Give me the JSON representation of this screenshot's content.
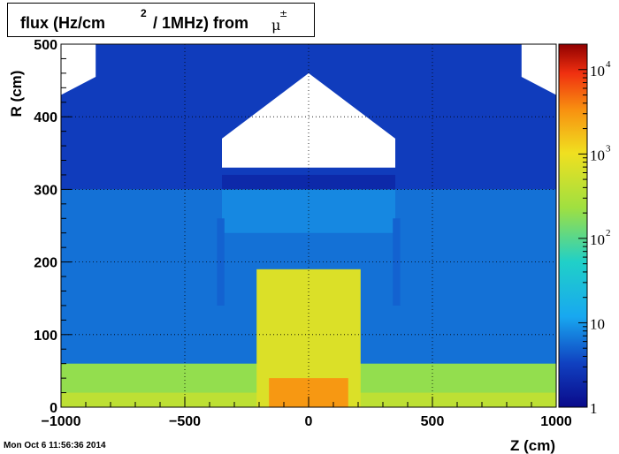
{
  "title": {
    "main": "flux (Hz/cm",
    "sup": "2",
    "rest": "/ 1MHz) from",
    "particle": "μ",
    "particle_sup": "±"
  },
  "timestamp": "Mon Oct  6 11:56:36 2014",
  "chart_data": {
    "type": "heatmap",
    "title": "flux (Hz/cm2 / 1MHz) from μ±",
    "xlabel": "Z (cm)",
    "ylabel": "R (cm)",
    "xlim": [
      -1000,
      1000
    ],
    "ylim": [
      0,
      500
    ],
    "zscale": "log",
    "zlim": [
      1,
      20000
    ],
    "grid": true,
    "x_ticks": [
      {
        "value": -1000,
        "label": "−1000"
      },
      {
        "value": -500,
        "label": "−500"
      },
      {
        "value": 0,
        "label": "0"
      },
      {
        "value": 500,
        "label": "500"
      },
      {
        "value": 1000,
        "label": "1000"
      }
    ],
    "y_ticks": [
      {
        "value": 0,
        "label": "0"
      },
      {
        "value": 100,
        "label": "100"
      },
      {
        "value": 200,
        "label": "200"
      },
      {
        "value": 300,
        "label": "300"
      },
      {
        "value": 400,
        "label": "400"
      },
      {
        "value": 500,
        "label": "500"
      }
    ],
    "colorbar_ticks": [
      {
        "value": 1,
        "label": "1",
        "exp": ""
      },
      {
        "value": 10,
        "label": "10",
        "exp": ""
      },
      {
        "value": 100,
        "label": "10",
        "exp": "2"
      },
      {
        "value": 1000,
        "label": "10",
        "exp": "3"
      },
      {
        "value": 10000,
        "label": "10",
        "exp": "4"
      }
    ],
    "regions": [
      {
        "z": [
          -1000,
          1000
        ],
        "r": [
          0,
          500
        ],
        "flux": 6
      },
      {
        "z": [
          -1000,
          1000
        ],
        "r": [
          300,
          500
        ],
        "flux": 3
      },
      {
        "z": [
          -1000,
          1000
        ],
        "r": [
          0,
          60
        ],
        "flux": 200
      },
      {
        "z": [
          -1000,
          1000
        ],
        "r": [
          0,
          20
        ],
        "flux": 400
      },
      {
        "z": [
          -210,
          210
        ],
        "r": [
          0,
          190
        ],
        "flux": 700
      },
      {
        "z": [
          -160,
          160
        ],
        "r": [
          0,
          40
        ],
        "flux": 3000
      },
      {
        "z": [
          -350,
          350
        ],
        "r": [
          240,
          300
        ],
        "flux": 8
      },
      {
        "z": [
          -350,
          350
        ],
        "r": [
          300,
          320
        ],
        "flux": 2
      },
      {
        "z": [
          -370,
          -340
        ],
        "r": [
          140,
          260
        ],
        "flux": 5
      },
      {
        "z": [
          340,
          370
        ],
        "r": [
          140,
          260
        ],
        "flux": 5
      }
    ],
    "empty_regions": [
      {
        "points": [
          [
            -350,
            330
          ],
          [
            -350,
            370
          ],
          [
            0,
            460
          ],
          [
            350,
            370
          ],
          [
            350,
            330
          ]
        ]
      },
      {
        "points": [
          [
            -1000,
            430
          ],
          [
            -1000,
            500
          ],
          [
            -860,
            500
          ],
          [
            -860,
            455
          ]
        ]
      },
      {
        "points": [
          [
            860,
            455
          ],
          [
            860,
            500
          ],
          [
            1000,
            500
          ],
          [
            1000,
            430
          ]
        ]
      }
    ]
  }
}
